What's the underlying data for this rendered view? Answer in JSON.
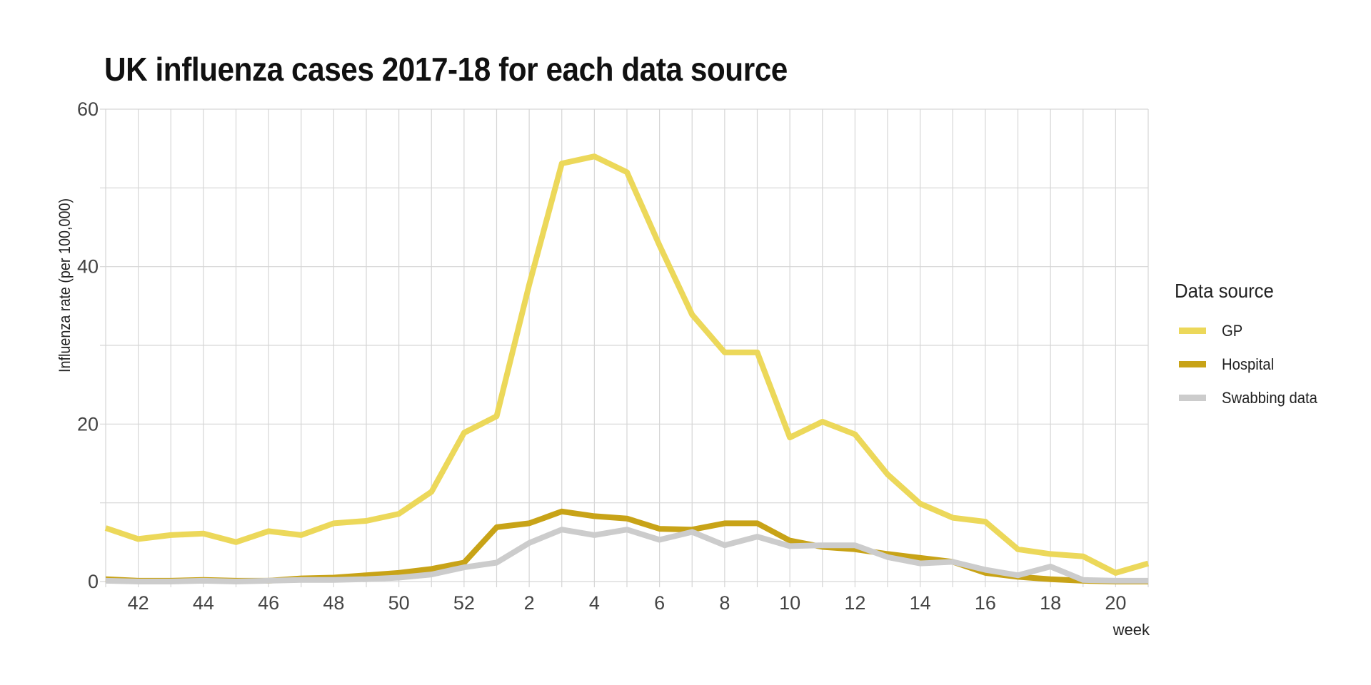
{
  "chart_data": {
    "type": "line",
    "title": "UK influenza cases 2017-18 for each data source",
    "xlabel": "week",
    "ylabel": "Influenza rate (per 100,000)",
    "x": [
      41,
      42,
      43,
      44,
      45,
      46,
      47,
      48,
      49,
      50,
      51,
      52,
      1,
      2,
      3,
      4,
      5,
      6,
      7,
      8,
      9,
      10,
      11,
      12,
      13,
      14,
      15,
      16,
      17,
      18,
      19,
      20,
      21
    ],
    "x_tick_labels": [
      "42",
      "44",
      "46",
      "48",
      "50",
      "52",
      "2",
      "4",
      "6",
      "8",
      "10",
      "12",
      "14",
      "16",
      "18",
      "20"
    ],
    "y_ticks": [
      "0",
      "20",
      "40",
      "60"
    ],
    "ylim": [
      0,
      60
    ],
    "grid": true,
    "legend_title": "Data source",
    "legend_position": "right",
    "series": [
      {
        "name": "GP",
        "color": "#ecd85a",
        "values": [
          6.8,
          5.4,
          5.9,
          6.1,
          5.0,
          6.4,
          5.9,
          7.4,
          7.7,
          8.6,
          11.4,
          18.9,
          21.0,
          37.7,
          53.1,
          54.0,
          52.0,
          42.7,
          33.9,
          29.1,
          29.1,
          18.3,
          20.3,
          18.7,
          13.6,
          9.9,
          8.1,
          7.6,
          4.1,
          3.5,
          3.2,
          1.1,
          2.3
        ]
      },
      {
        "name": "Hospital",
        "color": "#c8a317",
        "values": [
          0.3,
          0.1,
          0.1,
          0.2,
          0.1,
          0.1,
          0.4,
          0.5,
          0.8,
          1.1,
          1.6,
          2.4,
          6.9,
          7.4,
          8.9,
          8.3,
          8.0,
          6.7,
          6.6,
          7.4,
          7.4,
          5.2,
          4.4,
          4.1,
          3.5,
          3.0,
          2.5,
          1.1,
          0.6,
          0.3,
          0.1,
          0.0,
          0.0
        ]
      },
      {
        "name": "Swabbing data",
        "color": "#cccccc",
        "values": [
          0.1,
          0.0,
          0.0,
          0.1,
          0.0,
          0.1,
          0.2,
          0.2,
          0.3,
          0.5,
          0.9,
          1.8,
          2.4,
          4.9,
          6.6,
          5.9,
          6.6,
          5.3,
          6.3,
          4.6,
          5.7,
          4.5,
          4.6,
          4.6,
          3.1,
          2.3,
          2.5,
          1.5,
          0.8,
          1.9,
          0.2,
          0.1,
          0.1
        ]
      }
    ]
  }
}
